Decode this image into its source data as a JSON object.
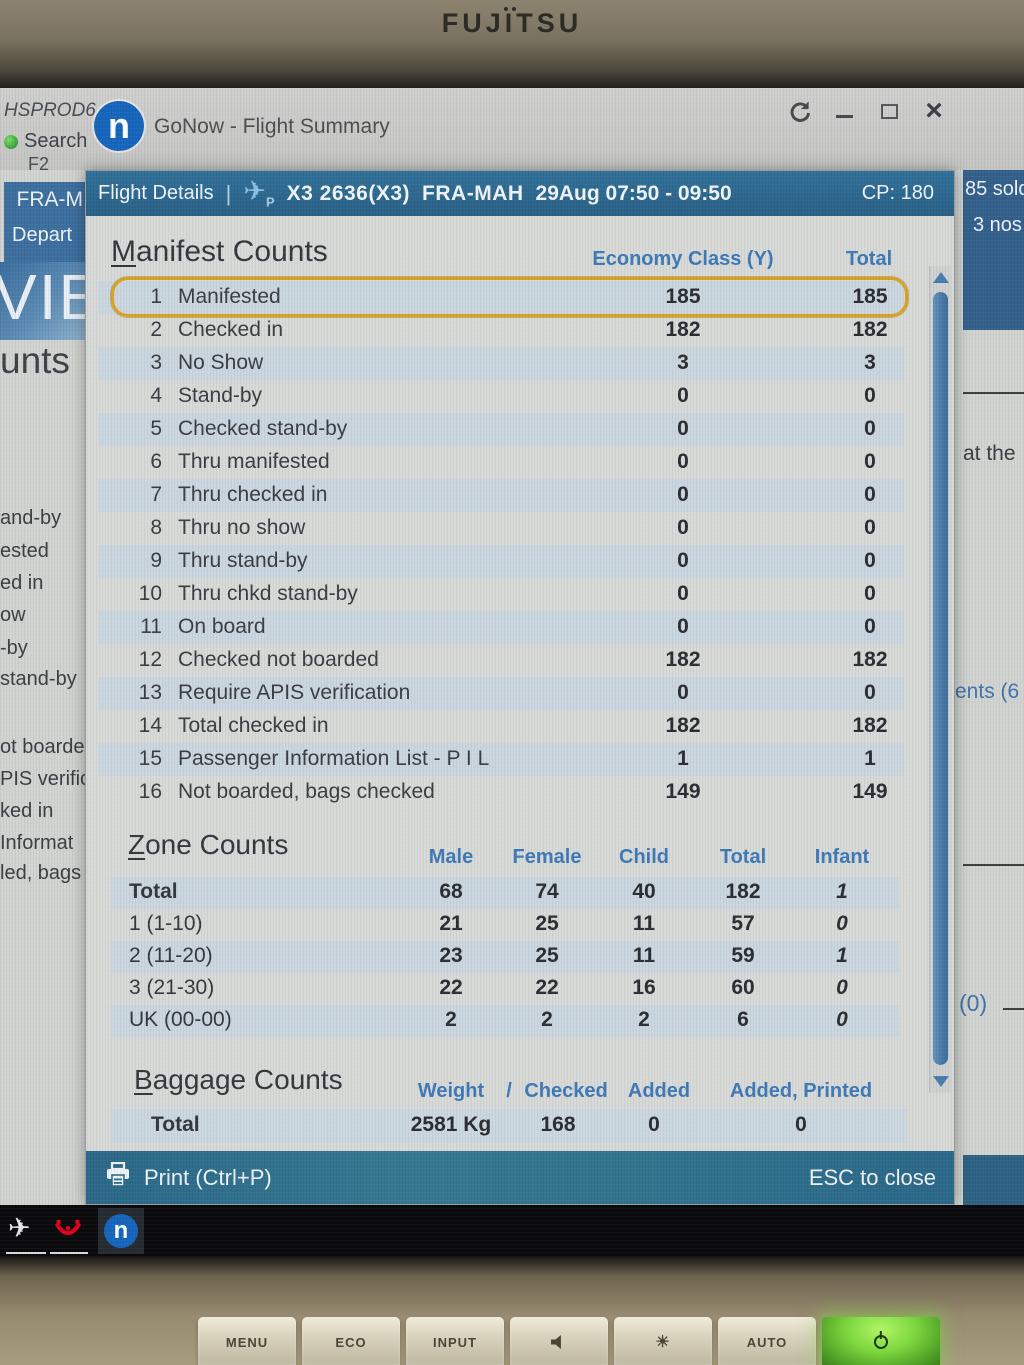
{
  "monitor": {
    "brand": "FUJITSU",
    "buttons": [
      {
        "label": "MENU"
      },
      {
        "label": "ECO"
      },
      {
        "label": "INPUT"
      },
      {
        "icon": "speaker"
      },
      {
        "icon": "brightness",
        "glyph": "☀"
      },
      {
        "label": "AUTO"
      },
      {
        "icon": "power",
        "power": true
      }
    ]
  },
  "window": {
    "title": "GoNow - Flight Summary",
    "logo_letter": "n"
  },
  "background_left": {
    "hsprod": "HSPROD6",
    "search": "Search",
    "f2": "F2",
    "route_fragment": "FRA-M",
    "depart_fragment": "Depart",
    "big_text": "VIE",
    "counts_fragment": "unts",
    "fragments": [
      "and-by",
      "ested",
      "ed in",
      "ow",
      "-by",
      "stand-by",
      "ot boarded",
      "PIS verific",
      "ked in",
      "Informat",
      "led, bags c"
    ]
  },
  "background_right": {
    "sold": "85 sold",
    "nos": "3 nos",
    "at_the": "at the",
    "ents": "ents (6",
    "zero": "(0)"
  },
  "dialog": {
    "header": {
      "title": "Flight Details",
      "separator": "|",
      "plane_sub": "P",
      "flight": "X3 2636(X3)",
      "route": "FRA-MAH",
      "schedule": "29Aug 07:50 - 09:50",
      "cp": "CP: 180"
    },
    "manifest": {
      "title": "Manifest Counts",
      "columns": [
        "Economy Class (Y)",
        "Total"
      ],
      "rows": [
        {
          "num": "1",
          "label": "Manifested",
          "economy": "185",
          "total": "185",
          "highlight": true
        },
        {
          "num": "2",
          "label": "Checked in",
          "economy": "182",
          "total": "182"
        },
        {
          "num": "3",
          "label": "No Show",
          "economy": "3",
          "total": "3"
        },
        {
          "num": "4",
          "label": "Stand-by",
          "economy": "0",
          "total": "0"
        },
        {
          "num": "5",
          "label": "Checked stand-by",
          "economy": "0",
          "total": "0"
        },
        {
          "num": "6",
          "label": "Thru manifested",
          "economy": "0",
          "total": "0"
        },
        {
          "num": "7",
          "label": "Thru checked in",
          "economy": "0",
          "total": "0"
        },
        {
          "num": "8",
          "label": "Thru no show",
          "economy": "0",
          "total": "0"
        },
        {
          "num": "9",
          "label": "Thru stand-by",
          "economy": "0",
          "total": "0"
        },
        {
          "num": "10",
          "label": "Thru chkd stand-by",
          "economy": "0",
          "total": "0"
        },
        {
          "num": "11",
          "label": "On board",
          "economy": "0",
          "total": "0"
        },
        {
          "num": "12",
          "label": "Checked not boarded",
          "economy": "182",
          "total": "182"
        },
        {
          "num": "13",
          "label": "Require APIS verification",
          "economy": "0",
          "total": "0"
        },
        {
          "num": "14",
          "label": "Total checked in",
          "economy": "182",
          "total": "182"
        },
        {
          "num": "15",
          "label": "Passenger Information List - P I L",
          "economy": "1",
          "total": "1"
        },
        {
          "num": "16",
          "label": "Not boarded, bags checked",
          "economy": "149",
          "total": "149"
        }
      ]
    },
    "zones": {
      "title": "Zone Counts",
      "columns": [
        "Male",
        "Female",
        "Child",
        "Total",
        "Infant"
      ],
      "rows": [
        {
          "label": "Total",
          "male": "68",
          "female": "74",
          "child": "40",
          "total": "182",
          "infant": "1",
          "bold": true
        },
        {
          "label": "1 (1-10)",
          "male": "21",
          "female": "25",
          "child": "11",
          "total": "57",
          "infant": "0"
        },
        {
          "label": "2 (11-20)",
          "male": "23",
          "female": "25",
          "child": "11",
          "total": "59",
          "infant": "1"
        },
        {
          "label": "3 (21-30)",
          "male": "22",
          "female": "22",
          "child": "16",
          "total": "60",
          "infant": "0"
        },
        {
          "label": "UK (00-00)",
          "male": "2",
          "female": "2",
          "child": "2",
          "total": "6",
          "infant": "0"
        }
      ]
    },
    "baggage": {
      "title": "Baggage Counts",
      "columns": [
        "Weight",
        "/",
        "Checked",
        "Added",
        "Added, Printed"
      ],
      "total_row": {
        "label": "Total",
        "weight": "2581 Kg",
        "checked": "168",
        "added": "0",
        "added_printed": "0"
      }
    },
    "footer": {
      "print_label": "Print (Ctrl+P)",
      "esc_label": "ESC to close"
    }
  },
  "colors": {
    "header_teal": "#2e6f94",
    "accent_blue": "#3e7ab8",
    "highlight_orange": "#dca41d",
    "row_stripe": "#cbd7e0",
    "scrollbar_blue": "#4a7cab",
    "led_green": "#7ed93f",
    "tui_red": "#e2001a",
    "logo_blue": "#1766bd"
  }
}
